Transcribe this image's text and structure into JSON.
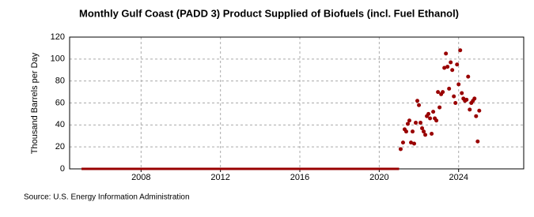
{
  "chart_data": {
    "type": "scatter",
    "title": "Monthly Gulf Coast (PADD 3) Product Supplied of Biofuels (incl. Fuel Ethanol)",
    "y_label": "Thousand Barrels per Day",
    "source": "Source: U.S. Energy Information Administration",
    "xlim": [
      2004.4,
      2027.28
    ],
    "xticks": [
      2008,
      2012,
      2016,
      2020,
      2024
    ],
    "ylim": [
      0,
      120
    ],
    "yticks": [
      0,
      20,
      40,
      60,
      80,
      100,
      120
    ],
    "grid": true,
    "series": [
      {
        "mode": "line",
        "color": "#990000",
        "x": [
          2005,
          2021
        ],
        "values": [
          0,
          0
        ]
      },
      {
        "mode": "markers",
        "color": "#990000",
        "x": [
          2021.08,
          2021.2,
          2021.28,
          2021.36,
          2021.44,
          2021.52,
          2021.6,
          2021.68,
          2021.76,
          2021.84,
          2021.92,
          2022.0,
          2022.08,
          2022.16,
          2022.24,
          2022.32,
          2022.4,
          2022.48,
          2022.56,
          2022.64,
          2022.72,
          2022.8,
          2022.88,
          2022.96,
          2023.04,
          2023.12,
          2023.2,
          2023.28,
          2023.36,
          2023.44,
          2023.52,
          2023.6,
          2023.68,
          2023.76,
          2023.84,
          2023.92,
          2024.0,
          2024.08,
          2024.16,
          2024.24,
          2024.32,
          2024.4,
          2024.48,
          2024.56,
          2024.64,
          2024.72,
          2024.8,
          2024.88,
          2024.96,
          2025.04
        ],
        "values": [
          18,
          24,
          36,
          34,
          41,
          44,
          24,
          34,
          23,
          42,
          62,
          58,
          42,
          37,
          34,
          31,
          48,
          50,
          46,
          32,
          52,
          46,
          44,
          70,
          56,
          68,
          70,
          92,
          105,
          93,
          73,
          97,
          90,
          66,
          60,
          95,
          77,
          108,
          69,
          64,
          62,
          63,
          84,
          54,
          60,
          62,
          64,
          48,
          25,
          53
        ]
      }
    ]
  }
}
